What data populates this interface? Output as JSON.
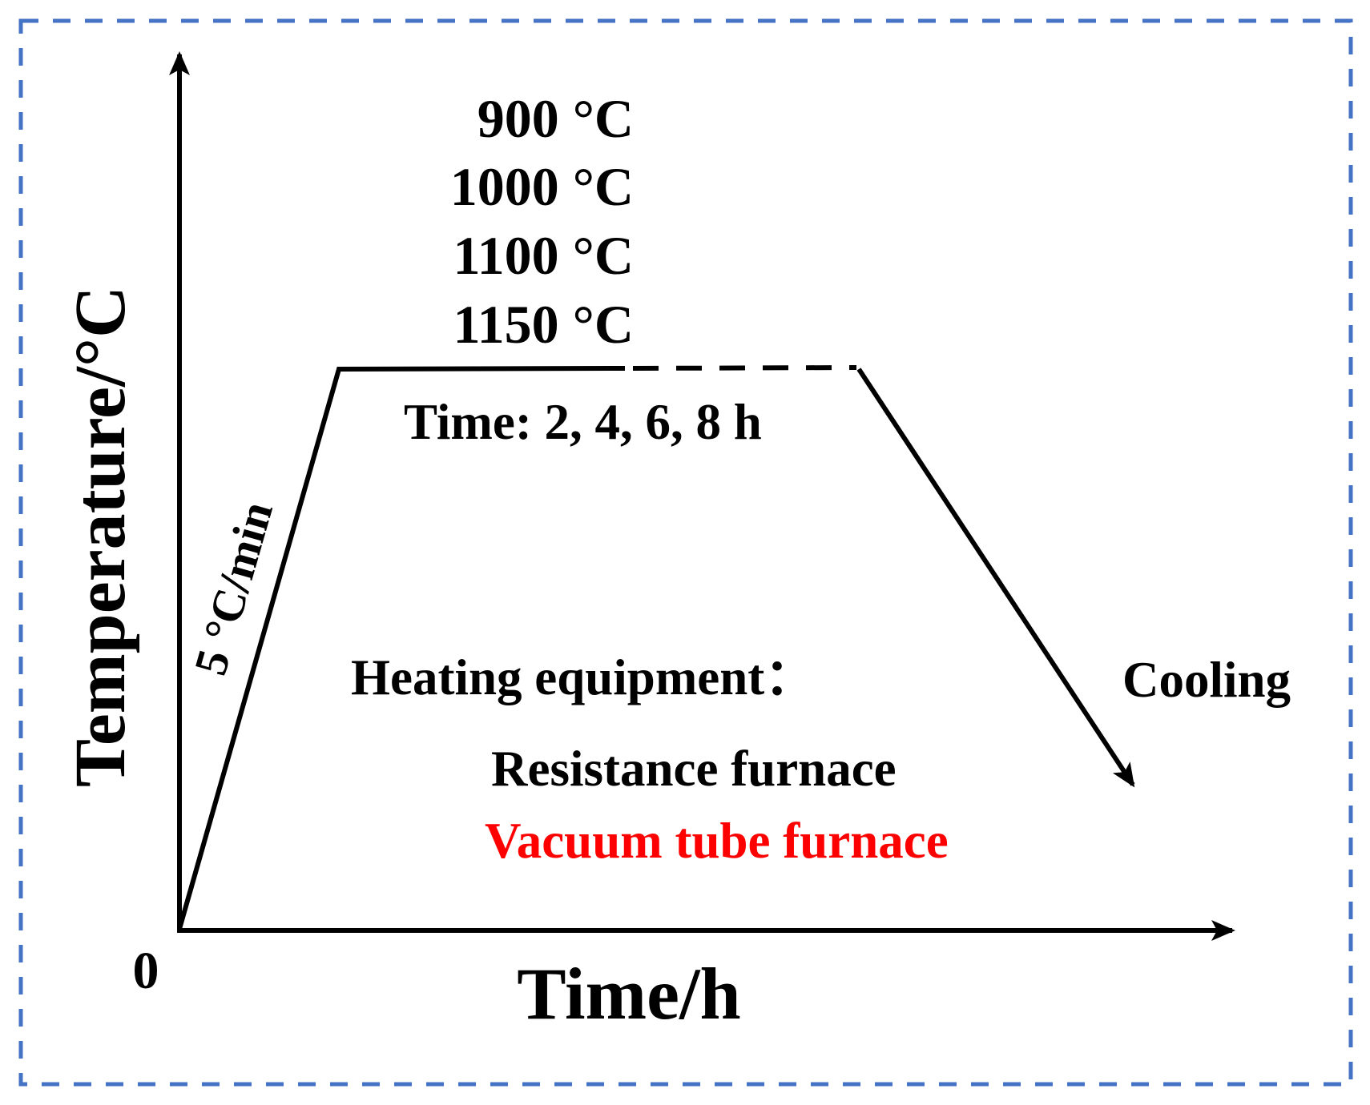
{
  "diagram": {
    "y_axis_label": "Temperature/°C",
    "x_axis_label": "Time/h",
    "origin_label": "0",
    "temperatures": [
      "900 °C",
      "1000 °C",
      "1100 °C",
      "1150 °C"
    ],
    "hold_time": "Time: 2, 4, 6, 8 h",
    "heating_rate": "5 °C/min",
    "cooling": "Cooling",
    "equipment_heading": "Heating equipment：",
    "furnaces": [
      "Resistance furnace",
      "Vacuum tube furnace"
    ]
  }
}
